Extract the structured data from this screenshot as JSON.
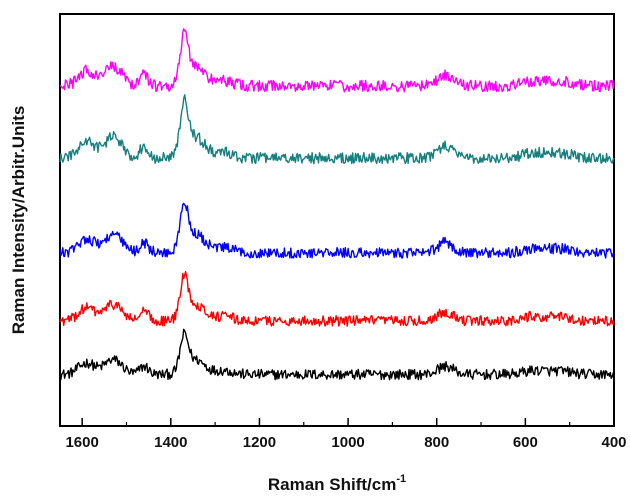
{
  "chart_data": {
    "type": "line",
    "title": "",
    "xlabel": "Raman Shift/cm",
    "xlabel_superscript": "-1",
    "ylabel": "Raman Intensity/Arbitr.Units",
    "x_reversed": true,
    "xlim": [
      1650,
      400
    ],
    "ylim": [
      0,
      10
    ],
    "y_ticks_shown": false,
    "grid": false,
    "legend": "none",
    "x_ticks": [
      1600,
      1400,
      1200,
      1000,
      800,
      600,
      400
    ],
    "x_tick_labels": [
      "1600",
      "1400",
      "1200",
      "1000",
      "800",
      "600",
      "400"
    ],
    "x_minor_ticks": [
      1500,
      1300,
      1100,
      900,
      700,
      500
    ],
    "peaks": [
      {
        "x": 1590,
        "h": 0.35,
        "w": 18
      },
      {
        "x": 1530,
        "h": 0.45,
        "w": 20
      },
      {
        "x": 1460,
        "h": 0.25,
        "w": 10
      },
      {
        "x": 1370,
        "h": 1.0,
        "w": 9
      },
      {
        "x": 1345,
        "h": 0.45,
        "w": 22
      },
      {
        "x": 1280,
        "h": 0.12,
        "w": 20
      },
      {
        "x": 780,
        "h": 0.25,
        "w": 18
      },
      {
        "x": 580,
        "h": 0.12,
        "w": 25
      },
      {
        "x": 520,
        "h": 0.1,
        "w": 25
      }
    ],
    "series": [
      {
        "color": "#000000",
        "baseline": 1.25,
        "scale": 0.8,
        "noise": 0.25
      },
      {
        "color": "#ff0000",
        "baseline": 2.55,
        "scale": 0.9,
        "noise": 0.25
      },
      {
        "color": "#0000ff",
        "baseline": 4.2,
        "scale": 1.0,
        "noise": 0.26
      },
      {
        "color": "#168080",
        "baseline": 6.5,
        "scale": 1.15,
        "noise": 0.27
      },
      {
        "color": "#ff00ff",
        "baseline": 8.25,
        "scale": 1.05,
        "noise": 0.28
      }
    ]
  }
}
